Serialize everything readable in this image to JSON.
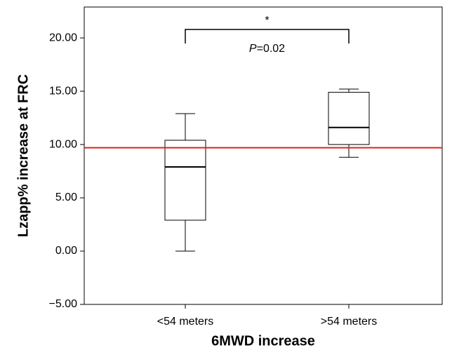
{
  "chart_data": {
    "type": "box",
    "xlabel": "6MWD increase",
    "ylabel": "Lzapp% increase at FRC",
    "categories": [
      "<54 meters",
      ">54 meters"
    ],
    "boxes": [
      {
        "whislo": 0,
        "q1": 2.9,
        "med": 7.9,
        "q3": 10.4,
        "whishi": 12.9
      },
      {
        "whislo": 8.8,
        "q1": 10.0,
        "med": 11.6,
        "q3": 14.9,
        "whishi": 15.2
      }
    ],
    "color": "#000000",
    "reference_line": {
      "value": 9.7,
      "color": "#e0201b"
    },
    "significance": {
      "star": "*",
      "p_symbol": "P",
      "p_value": "=0.02"
    },
    "ylim": [
      -5,
      22.9
    ],
    "yticks": [
      {
        "value": -5,
        "label": "−5.00"
      },
      {
        "value": 0,
        "label": "0.00"
      },
      {
        "value": 5,
        "label": "5.00"
      },
      {
        "value": 10,
        "label": "10.00"
      },
      {
        "value": 15,
        "label": "15.00"
      },
      {
        "value": 20,
        "label": "20.00"
      }
    ]
  }
}
